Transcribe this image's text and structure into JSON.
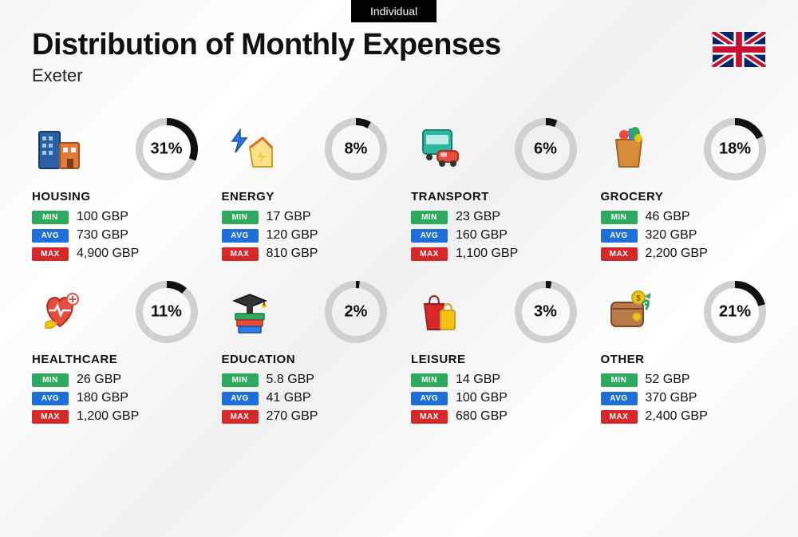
{
  "top_badge": "Individual",
  "title": "Distribution of Monthly Expenses",
  "subtitle": "Exeter",
  "currency": "GBP",
  "badges": {
    "min": "MIN",
    "avg": "AVG",
    "max": "MAX"
  },
  "colors": {
    "min_bg": "#2eaa5f",
    "avg_bg": "#1e6fd9",
    "max_bg": "#d62828",
    "ring_track": "#d0d0d0",
    "ring_fill": "#111111",
    "text": "#111111"
  },
  "donut": {
    "size": 78,
    "thickness": 9
  },
  "categories": [
    {
      "key": "housing",
      "label": "HOUSING",
      "pct": 31,
      "min": "100 GBP",
      "avg": "730 GBP",
      "max": "4,900 GBP"
    },
    {
      "key": "energy",
      "label": "ENERGY",
      "pct": 8,
      "min": "17 GBP",
      "avg": "120 GBP",
      "max": "810 GBP"
    },
    {
      "key": "transport",
      "label": "TRANSPORT",
      "pct": 6,
      "min": "23 GBP",
      "avg": "160 GBP",
      "max": "1,100 GBP"
    },
    {
      "key": "grocery",
      "label": "GROCERY",
      "pct": 18,
      "min": "46 GBP",
      "avg": "320 GBP",
      "max": "2,200 GBP"
    },
    {
      "key": "healthcare",
      "label": "HEALTHCARE",
      "pct": 11,
      "min": "26 GBP",
      "avg": "180 GBP",
      "max": "1,200 GBP"
    },
    {
      "key": "education",
      "label": "EDUCATION",
      "pct": 2,
      "min": "5.8 GBP",
      "avg": "41 GBP",
      "max": "270 GBP"
    },
    {
      "key": "leisure",
      "label": "LEISURE",
      "pct": 3,
      "min": "14 GBP",
      "avg": "100 GBP",
      "max": "680 GBP"
    },
    {
      "key": "other",
      "label": "OTHER",
      "pct": 21,
      "min": "52 GBP",
      "avg": "370 GBP",
      "max": "2,400 GBP"
    }
  ]
}
